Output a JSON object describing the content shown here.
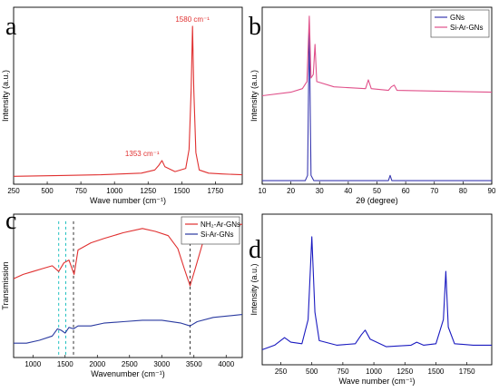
{
  "chart_data": [
    {
      "panel": "a",
      "type": "line",
      "xlabel": "Wave number (cm⁻¹)",
      "ylabel": "Intensity (a.u.)",
      "xlim": [
        250,
        1950
      ],
      "xticks": [
        "250",
        "500",
        "750",
        "1000",
        "1250",
        "1500",
        "1750"
      ],
      "annotations": [
        {
          "text": "1580 cm⁻¹",
          "x": 1580
        },
        {
          "text": "1353 cm⁻¹",
          "x": 1353
        }
      ],
      "series": [
        {
          "color": "#e03030",
          "points": [
            [
              250,
              0.05
            ],
            [
              600,
              0.055
            ],
            [
              900,
              0.06
            ],
            [
              1200,
              0.07
            ],
            [
              1300,
              0.09
            ],
            [
              1330,
              0.12
            ],
            [
              1353,
              0.15
            ],
            [
              1375,
              0.11
            ],
            [
              1450,
              0.08
            ],
            [
              1530,
              0.1
            ],
            [
              1555,
              0.22
            ],
            [
              1570,
              0.6
            ],
            [
              1580,
              1.0
            ],
            [
              1590,
              0.6
            ],
            [
              1605,
              0.2
            ],
            [
              1630,
              0.09
            ],
            [
              1700,
              0.07
            ],
            [
              1800,
              0.065
            ],
            [
              1950,
              0.06
            ]
          ]
        }
      ]
    },
    {
      "panel": "b",
      "type": "line",
      "xlabel": "2θ (degree)",
      "ylabel": "Intensity (a.u.)",
      "xlim": [
        10,
        90
      ],
      "xticks": [
        "10",
        "20",
        "30",
        "40",
        "50",
        "60",
        "70",
        "80",
        "90"
      ],
      "legend": "top-right",
      "series": [
        {
          "name": "GNs",
          "color": "#3a3ab0",
          "points": [
            [
              10,
              0.02
            ],
            [
              25,
              0.02
            ],
            [
              25.8,
              0.05
            ],
            [
              26.4,
              0.9
            ],
            [
              27,
              0.05
            ],
            [
              28,
              0.02
            ],
            [
              54,
              0.02
            ],
            [
              54.6,
              0.05
            ],
            [
              55.2,
              0.02
            ],
            [
              90,
              0.02
            ]
          ]
        },
        {
          "name": "Si-Ar-GNs",
          "color": "#e0508a",
          "points": [
            [
              10,
              0.5
            ],
            [
              20,
              0.52
            ],
            [
              24,
              0.54
            ],
            [
              25.6,
              0.58
            ],
            [
              26.4,
              0.95
            ],
            [
              27,
              0.6
            ],
            [
              27.8,
              0.62
            ],
            [
              28.4,
              0.79
            ],
            [
              29,
              0.58
            ],
            [
              35,
              0.55
            ],
            [
              46,
              0.54
            ],
            [
              47,
              0.59
            ],
            [
              48,
              0.54
            ],
            [
              54,
              0.53
            ],
            [
              55,
              0.55
            ],
            [
              56,
              0.56
            ],
            [
              57,
              0.53
            ],
            [
              90,
              0.52
            ]
          ]
        }
      ]
    },
    {
      "panel": "c",
      "type": "line",
      "xlabel": "Wavenumber (cm⁻¹)",
      "ylabel": "Transmission",
      "xlim": [
        700,
        4250
      ],
      "xticks": [
        "1000",
        "1500",
        "2000",
        "2500",
        "3000",
        "3500",
        "4000"
      ],
      "legend": "top-right",
      "reference_lines": [
        1400,
        1510,
        1630,
        3440
      ],
      "series": [
        {
          "name": "NH₂-Ar-GNs",
          "color": "#e03030",
          "points": [
            [
              700,
              0.55
            ],
            [
              850,
              0.58
            ],
            [
              1000,
              0.6
            ],
            [
              1150,
              0.62
            ],
            [
              1300,
              0.64
            ],
            [
              1400,
              0.6
            ],
            [
              1480,
              0.66
            ],
            [
              1560,
              0.68
            ],
            [
              1640,
              0.58
            ],
            [
              1700,
              0.75
            ],
            [
              1900,
              0.8
            ],
            [
              2100,
              0.83
            ],
            [
              2400,
              0.87
            ],
            [
              2700,
              0.9
            ],
            [
              2900,
              0.88
            ],
            [
              3100,
              0.85
            ],
            [
              3250,
              0.76
            ],
            [
              3350,
              0.62
            ],
            [
              3440,
              0.5
            ],
            [
              3520,
              0.62
            ],
            [
              3650,
              0.82
            ],
            [
              3800,
              0.9
            ],
            [
              4250,
              0.93
            ]
          ]
        },
        {
          "name": "Si-Ar-GNs",
          "color": "#2a3aa0",
          "points": [
            [
              700,
              0.1
            ],
            [
              900,
              0.1
            ],
            [
              1100,
              0.12
            ],
            [
              1300,
              0.15
            ],
            [
              1380,
              0.2
            ],
            [
              1440,
              0.19
            ],
            [
              1500,
              0.17
            ],
            [
              1560,
              0.21
            ],
            [
              1630,
              0.2
            ],
            [
              1700,
              0.22
            ],
            [
              1900,
              0.22
            ],
            [
              2100,
              0.24
            ],
            [
              2400,
              0.25
            ],
            [
              2700,
              0.26
            ],
            [
              3000,
              0.26
            ],
            [
              3300,
              0.24
            ],
            [
              3440,
              0.22
            ],
            [
              3550,
              0.25
            ],
            [
              3800,
              0.28
            ],
            [
              4250,
              0.3
            ]
          ]
        }
      ]
    },
    {
      "panel": "d",
      "type": "line",
      "xlabel": "Wave number (cm⁻¹)",
      "ylabel": "Intensity (a.u.)",
      "xlim": [
        100,
        1950
      ],
      "xticks": [
        "250",
        "500",
        "750",
        "1000",
        "1250",
        "1500",
        "1750"
      ],
      "series": [
        {
          "color": "#1a1ac0",
          "points": [
            [
              100,
              0.1
            ],
            [
              200,
              0.13
            ],
            [
              280,
              0.18
            ],
            [
              330,
              0.15
            ],
            [
              420,
              0.14
            ],
            [
              470,
              0.3
            ],
            [
              500,
              0.85
            ],
            [
              525,
              0.35
            ],
            [
              560,
              0.16
            ],
            [
              700,
              0.13
            ],
            [
              850,
              0.14
            ],
            [
              900,
              0.2
            ],
            [
              930,
              0.23
            ],
            [
              970,
              0.17
            ],
            [
              1100,
              0.12
            ],
            [
              1300,
              0.13
            ],
            [
              1345,
              0.15
            ],
            [
              1400,
              0.13
            ],
            [
              1500,
              0.14
            ],
            [
              1560,
              0.3
            ],
            [
              1580,
              0.62
            ],
            [
              1600,
              0.25
            ],
            [
              1650,
              0.14
            ],
            [
              1800,
              0.13
            ],
            [
              1950,
              0.13
            ]
          ]
        }
      ]
    }
  ]
}
